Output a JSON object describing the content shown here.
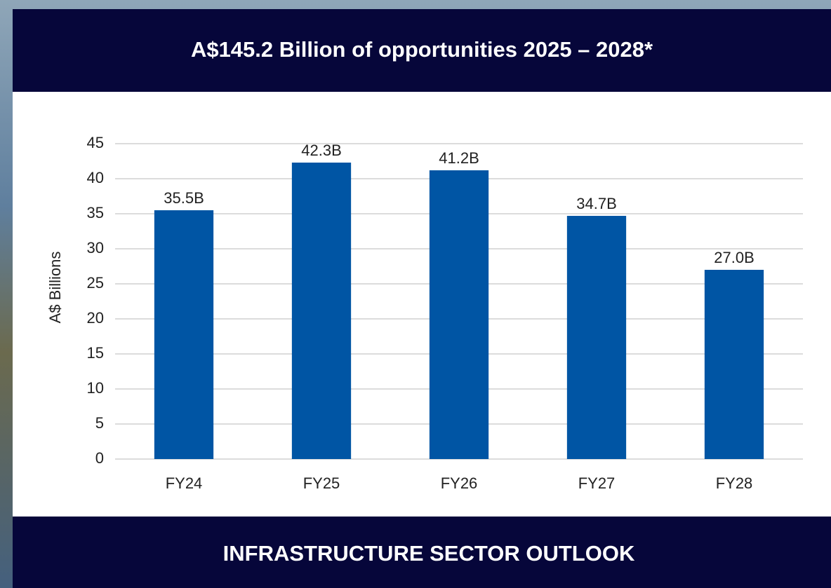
{
  "chart_data": {
    "type": "bar",
    "title": "A$145.2 Billion of opportunities 2025 – 2028*",
    "y_label": "A$ Billions",
    "categories": [
      "FY24",
      "FY25",
      "FY26",
      "FY27",
      "FY28"
    ],
    "values": [
      35.5,
      42.3,
      41.2,
      34.7,
      27.0
    ],
    "value_labels": [
      "35.5B",
      "42.3B",
      "41.2B",
      "34.7B",
      "27.0B"
    ],
    "color": "#0055a4",
    "ylim": [
      0,
      45
    ],
    "yticks": [
      0,
      5,
      10,
      15,
      20,
      25,
      30,
      35,
      40,
      45
    ],
    "grid": true
  },
  "footer": "INFRASTRUCTURE SECTOR OUTLOOK"
}
